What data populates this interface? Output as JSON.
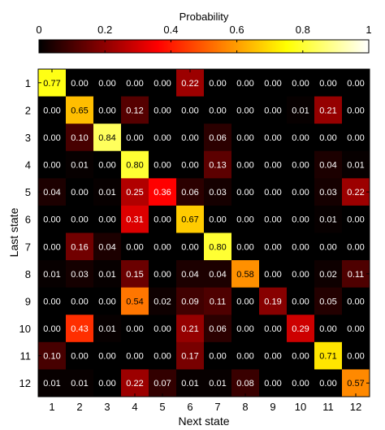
{
  "chart_data": {
    "type": "heatmap",
    "xlabel": "Next state",
    "ylabel": "Last state",
    "colorbar": {
      "title": "Probability",
      "ticks": [
        "0",
        "0.2",
        "0.4",
        "0.6",
        "0.8",
        "1"
      ],
      "range": [
        0,
        1
      ],
      "colormap": "hot"
    },
    "x_categories": [
      "1",
      "2",
      "3",
      "4",
      "5",
      "6",
      "7",
      "8",
      "9",
      "10",
      "11",
      "12"
    ],
    "y_categories": [
      "1",
      "2",
      "3",
      "4",
      "5",
      "6",
      "7",
      "8",
      "9",
      "10",
      "11",
      "12"
    ],
    "labels": [
      [
        "0.77",
        "0.00",
        "0.00",
        "0.00",
        "0.00",
        "0.22",
        "0.00",
        "0.00",
        "0.00",
        "0.00",
        "0.00",
        "0.00"
      ],
      [
        "0.00",
        "0.65",
        "0.00",
        "0.12",
        "0.00",
        "0.00",
        "0.00",
        "0.00",
        "0.00",
        "0.01",
        "0.21",
        "0.00"
      ],
      [
        "0.00",
        "0.10",
        "0.84",
        "0.00",
        "0.00",
        "0.00",
        "0.06",
        "0.00",
        "0.00",
        "0.00",
        "0.00",
        "0.00"
      ],
      [
        "0.00",
        "0.01",
        "0.00",
        "0.80",
        "0.00",
        "0.00",
        "0.13",
        "0.00",
        "0.00",
        "0.00",
        "0.04",
        "0.01"
      ],
      [
        "0.04",
        "0.00",
        "0.01",
        "0.25",
        "0.36",
        "0.06",
        "0.03",
        "0.00",
        "0.00",
        "0.00",
        "0.03",
        "0.22"
      ],
      [
        "0.00",
        "0.00",
        "0.00",
        "0.31",
        "0.00",
        "0.67",
        "0.00",
        "0.00",
        "0.00",
        "0.00",
        "0.01",
        "0.00"
      ],
      [
        "0.00",
        "0.16",
        "0.04",
        "0.00",
        "0.00",
        "0.00",
        "0.80",
        "0.00",
        "0.00",
        "0.00",
        "0.00",
        "0.00"
      ],
      [
        "0.01",
        "0.03",
        "0.01",
        "0.15",
        "0.00",
        "0.04",
        "0.04",
        "0.58",
        "0.00",
        "0.00",
        "0.02",
        "0.11"
      ],
      [
        "0.00",
        "0.00",
        "0.00",
        "0.54",
        "0.02",
        "0.09",
        "0.11",
        "0.00",
        "0.19",
        "0.00",
        "0.05",
        "0.00"
      ],
      [
        "0.00",
        "0.43",
        "0.01",
        "0.00",
        "0.00",
        "0.21",
        "0.06",
        "0.00",
        "0.00",
        "0.29",
        "0.00",
        "0.00"
      ],
      [
        "0.10",
        "0.00",
        "0.00",
        "0.00",
        "0.00",
        "0.17",
        "0.00",
        "0.00",
        "0.00",
        "0.00",
        "0.71",
        "0.00"
      ],
      [
        "0.01",
        "0.01",
        "0.00",
        "0.22",
        "0.07",
        "0.01",
        "0.01",
        "0.08",
        "0.00",
        "0.00",
        "0.00",
        "0.57"
      ]
    ]
  }
}
